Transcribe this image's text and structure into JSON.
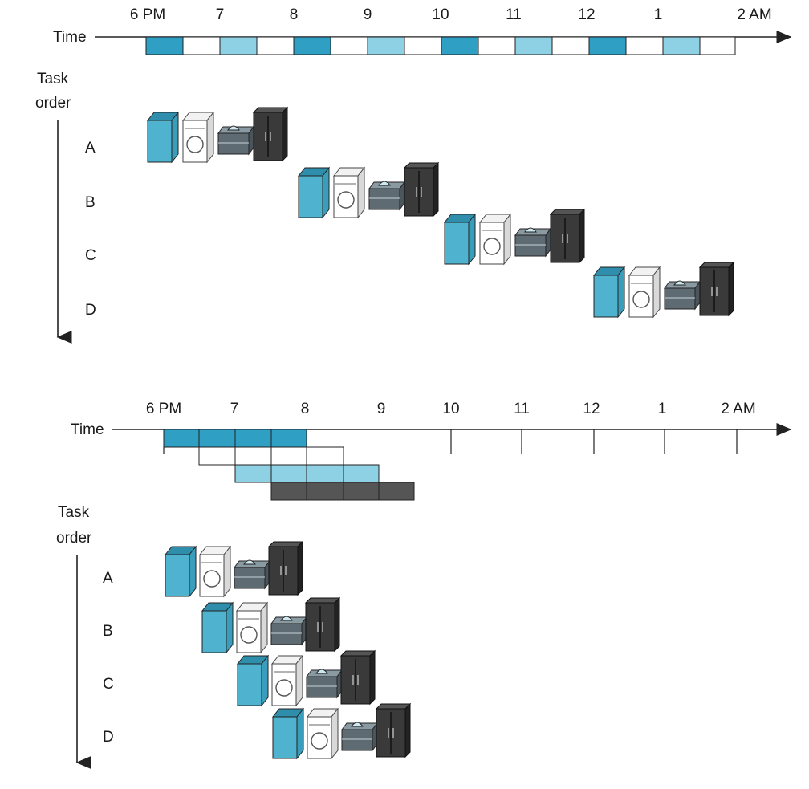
{
  "colors": {
    "washer": "#4fb3cf",
    "washer_top": "#2f8eab",
    "dryer": "#ffffff",
    "folder": "#5e6b72",
    "closet": "#3a3a3a",
    "stage_dark": "#2f9fc4",
    "stage_light": "#8ed0e4",
    "stage_gray": "#555555",
    "line": "#222222"
  },
  "sequential": {
    "time_label": "Time",
    "hours": [
      "6 PM",
      "7",
      "8",
      "9",
      "10",
      "11",
      "12",
      "1",
      "2 AM"
    ],
    "task_axis_label": [
      "Task",
      "order"
    ],
    "tasks": [
      "A",
      "B",
      "C",
      "D"
    ]
  },
  "pipelined": {
    "time_label": "Time",
    "hours": [
      "6 PM",
      "7",
      "8",
      "9",
      "10",
      "11",
      "12",
      "1",
      "2 AM"
    ],
    "task_axis_label": [
      "Task",
      "order"
    ],
    "tasks": [
      "A",
      "B",
      "C",
      "D"
    ]
  },
  "appliance_icons": [
    "washer-icon",
    "dryer-icon",
    "folding-table-icon",
    "closet-icon"
  ]
}
